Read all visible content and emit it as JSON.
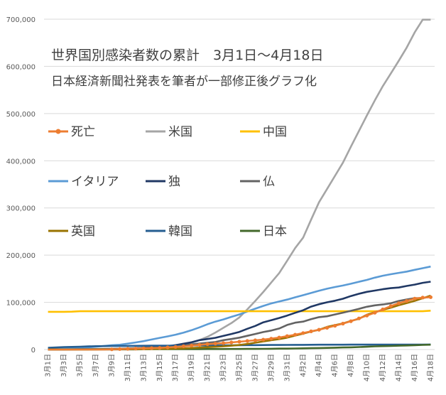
{
  "chart_data": {
    "type": "line",
    "title": "世界国別感染者数の累計　3月1日～4月18日",
    "subtitle": "日本経済新聞社発表を筆者が一部修正後グラフ化",
    "xlabel": "",
    "ylabel": "",
    "ylim": [
      0,
      700000
    ],
    "yticks": [
      "0",
      "100,000",
      "200,000",
      "300,000",
      "400,000",
      "500,000",
      "600,000",
      "700,000"
    ],
    "grid": true,
    "legend_position": "inside-left",
    "x": [
      "3月1日",
      "3月2日",
      "3月3日",
      "3月4日",
      "3月5日",
      "3月6日",
      "3月7日",
      "3月8日",
      "3月9日",
      "3月10日",
      "3月11日",
      "3月12日",
      "3月13日",
      "3月14日",
      "3月15日",
      "3月16日",
      "3月17日",
      "3月18日",
      "3月19日",
      "3月20日",
      "3月21日",
      "3月22日",
      "3月23日",
      "3月24日",
      "3月25日",
      "3月26日",
      "3月27日",
      "3月28日",
      "3月29日",
      "3月30日",
      "3月31日",
      "4月1日",
      "4月2日",
      "4月3日",
      "4月4日",
      "4月5日",
      "4月6日",
      "4月7日",
      "4月8日",
      "4月9日",
      "4月10日",
      "4月11日",
      "4月12日",
      "4月13日",
      "4月14日",
      "4月15日",
      "4月16日",
      "4月17日",
      "4月18日"
    ],
    "xticklabels": [
      "3月1日",
      "3月3日",
      "3月5日",
      "3月7日",
      "3月9日",
      "3月11日",
      "3月13日",
      "3月15日",
      "3月17日",
      "3月19日",
      "3月21日",
      "3月23日",
      "3月25日",
      "3月27日",
      "3月29日",
      "3月31日",
      "4月2日",
      "4月4日",
      "4月6日",
      "4月8日",
      "4月10日",
      "4月12日",
      "4月14日",
      "4月16日",
      "4月18日"
    ],
    "series": [
      {
        "name": "死亡",
        "color": "#ED7D31",
        "marker": true,
        "values": [
          0,
          0,
          0,
          0,
          0,
          0,
          0,
          0,
          500,
          1000,
          1500,
          2000,
          2500,
          3000,
          3500,
          4500,
          5500,
          7000,
          8500,
          10000,
          11500,
          12500,
          13500,
          15000,
          16500,
          18000,
          19500,
          21000,
          23000,
          25500,
          28500,
          31500,
          35000,
          38500,
          42000,
          46000,
          50500,
          55000,
          60000,
          66000,
          72000,
          78000,
          85000,
          92000,
          98000,
          103000,
          108000,
          110000,
          111000
        ]
      },
      {
        "name": "米国",
        "color": "#A5A5A5",
        "marker": false,
        "values": [
          0,
          0,
          0,
          0,
          0,
          0,
          0,
          0,
          0,
          0,
          0,
          0,
          1000,
          2000,
          3000,
          4500,
          6000,
          9000,
          14000,
          20000,
          27000,
          36000,
          46000,
          56000,
          68000,
          85000,
          103000,
          122000,
          142000,
          162000,
          188000,
          215000,
          237000,
          275000,
          312000,
          340000,
          368000,
          396000,
          430000,
          463000,
          496000,
          528000,
          558000,
          585000,
          612000,
          640000,
          672000,
          699000,
          699000
        ]
      },
      {
        "name": "中国",
        "color": "#FFC000",
        "marker": false,
        "values": [
          80000,
          80000,
          80000,
          80200,
          81200,
          81200,
          81200,
          81200,
          81200,
          81200,
          81200,
          81200,
          81200,
          81200,
          81200,
          81200,
          81200,
          81200,
          81200,
          81200,
          81200,
          81200,
          81200,
          81200,
          81200,
          81200,
          81200,
          81200,
          81200,
          81200,
          81200,
          81200,
          81200,
          81200,
          81200,
          81200,
          81200,
          81200,
          81200,
          81200,
          81200,
          81200,
          81200,
          81200,
          81200,
          81200,
          81200,
          81200,
          82300
        ]
      },
      {
        "name": "イタリア",
        "color": "#5B9BD5",
        "marker": false,
        "values": [
          1700,
          2000,
          2500,
          3100,
          3800,
          4600,
          5900,
          7400,
          9200,
          10100,
          12500,
          15100,
          17700,
          21200,
          24700,
          27900,
          31500,
          35700,
          41000,
          47000,
          53600,
          59100,
          63900,
          69200,
          74400,
          80600,
          86500,
          92500,
          97700,
          101700,
          105800,
          110600,
          115200,
          119800,
          124600,
          128900,
          132500,
          135600,
          139400,
          143600,
          147600,
          152300,
          156400,
          159500,
          162500,
          165200,
          168900,
          172400,
          175900
        ]
      },
      {
        "name": "独",
        "color": "#203864",
        "marker": false,
        "values": [
          130,
          160,
          200,
          260,
          400,
          600,
          800,
          1000,
          1200,
          1600,
          1900,
          2700,
          3700,
          4600,
          5800,
          7300,
          9300,
          12300,
          15300,
          19800,
          22300,
          24800,
          29000,
          32900,
          37300,
          43900,
          50000,
          57700,
          62100,
          66900,
          72000,
          77900,
          83300,
          90900,
          96100,
          100100,
          103400,
          107700,
          113300,
          118200,
          122200,
          124900,
          127800,
          130000,
          131400,
          134800,
          137600,
          141400,
          143700
        ]
      },
      {
        "name": "仏",
        "color": "#636363",
        "marker": false,
        "values": [
          100,
          130,
          190,
          280,
          380,
          650,
          950,
          1200,
          1400,
          1800,
          2300,
          2900,
          3700,
          4500,
          5400,
          6600,
          7700,
          9100,
          10900,
          12600,
          14400,
          16000,
          19800,
          22300,
          25200,
          29100,
          32900,
          37100,
          40200,
          44500,
          52100,
          56900,
          59100,
          64300,
          68600,
          70500,
          74400,
          78200,
          82000,
          86300,
          90600,
          93700,
          95400,
          98000,
          103000,
          106200,
          108800,
          109200,
          111800
        ]
      },
      {
        "name": "英国",
        "color": "#997300",
        "marker": false,
        "values": [
          40,
          40,
          50,
          90,
          120,
          160,
          210,
          280,
          320,
          380,
          460,
          600,
          800,
          1100,
          1400,
          1500,
          1950,
          2600,
          3300,
          4000,
          5000,
          5700,
          6700,
          8100,
          9600,
          11700,
          14500,
          17100,
          19700,
          22200,
          25200,
          29500,
          33700,
          38200,
          41900,
          47800,
          51600,
          55200,
          60700,
          65100,
          73800,
          78900,
          84300,
          88600,
          93900,
          98500,
          103100,
          108700,
          114200
        ]
      },
      {
        "name": "韓国",
        "color": "#255E91",
        "marker": false,
        "values": [
          3700,
          4300,
          5200,
          5600,
          6000,
          6600,
          7100,
          7300,
          7500,
          7500,
          7700,
          7800,
          8000,
          8100,
          8200,
          8300,
          8300,
          8400,
          8600,
          8700,
          8800,
          8900,
          9000,
          9100,
          9200,
          9300,
          9400,
          9500,
          9600,
          9700,
          9800,
          9900,
          10000,
          10100,
          10200,
          10200,
          10300,
          10300,
          10400,
          10400,
          10400,
          10500,
          10500,
          10500,
          10600,
          10600,
          10600,
          10600,
          10700
        ]
      },
      {
        "name": "日本",
        "color": "#43682B",
        "marker": false,
        "values": [
          250,
          260,
          280,
          300,
          330,
          360,
          400,
          460,
          500,
          580,
          630,
          670,
          720,
          780,
          800,
          830,
          870,
          900,
          920,
          960,
          1000,
          1050,
          1100,
          1150,
          1200,
          1300,
          1400,
          1500,
          1700,
          1900,
          2000,
          2200,
          2500,
          2800,
          3100,
          3500,
          3900,
          4300,
          4700,
          5300,
          5900,
          6700,
          7300,
          7600,
          8100,
          8600,
          9200,
          9800,
          10300
        ]
      }
    ]
  }
}
